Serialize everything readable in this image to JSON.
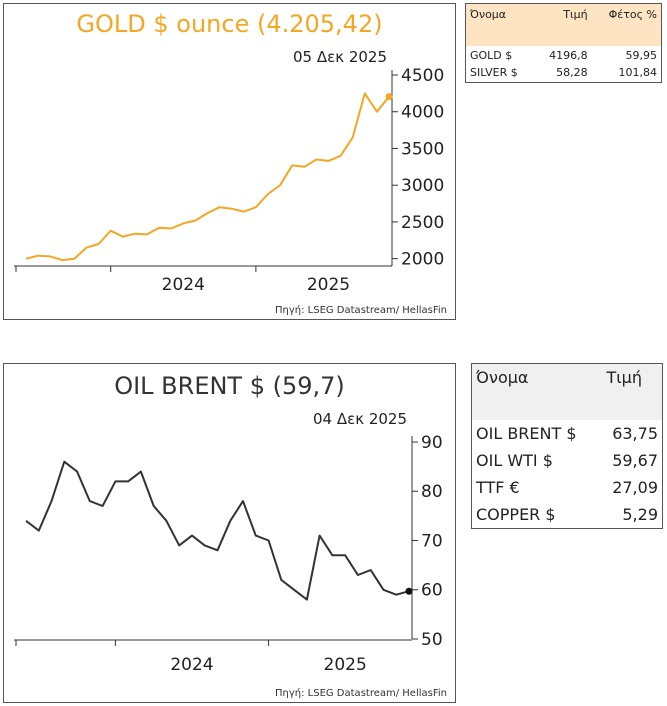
{
  "gold_panel": {
    "title": "GOLD $ ounce (4.205,42)",
    "date": "05 Δεκ 2025",
    "source": "Πηγή: LSEG Datastream/ HellasFin",
    "accent": "#f5a623"
  },
  "oil_panel": {
    "title": "OIL BRENT $ (59,7)",
    "date": "04 Δεκ 2025",
    "source": "Πηγή: LSEG Datastream/ HellasFin",
    "line_color": "#333333"
  },
  "metals_table": {
    "headers": [
      "Όνομα",
      "Τιμή",
      "Φέτος %"
    ],
    "header_bg": "#fde4c3",
    "rows": [
      {
        "name": "GOLD $",
        "price": "4196,8",
        "ytd": "59,95"
      },
      {
        "name": "SILVER $",
        "price": "58,28",
        "ytd": "101,84"
      }
    ]
  },
  "energy_table": {
    "headers": [
      "Όνομα",
      "Τιμή"
    ],
    "header_bg": "#f0f0f0",
    "rows": [
      {
        "name": "OIL BRENT $",
        "price": "63,75"
      },
      {
        "name": "OIL WTI $",
        "price": "59,67"
      },
      {
        "name": "TTF €",
        "price": "27,09"
      },
      {
        "name": "COPPER $",
        "price": "5,29"
      }
    ]
  },
  "chart_data": [
    {
      "type": "line",
      "title": "GOLD $ ounce (4.205,42)",
      "xlabel": "",
      "ylabel": "",
      "x_ticks": [
        "2024",
        "2025"
      ],
      "xlim": [
        "2023-06",
        "2025-12"
      ],
      "ylim": [
        1900,
        4500
      ],
      "y_ticks": [
        2000,
        2500,
        3000,
        3500,
        4000,
        4500
      ],
      "grid": false,
      "series": [
        {
          "x": [
            "2023-06",
            "2023-07",
            "2023-08",
            "2023-09",
            "2023-10",
            "2023-11",
            "2023-12",
            "2024-01",
            "2024-02",
            "2024-03",
            "2024-04",
            "2024-05",
            "2024-06",
            "2024-07",
            "2024-08",
            "2024-09",
            "2024-10",
            "2024-11",
            "2024-12",
            "2025-01",
            "2025-02",
            "2025-03",
            "2025-04",
            "2025-05",
            "2025-06",
            "2025-07",
            "2025-08",
            "2025-09",
            "2025-10",
            "2025-11",
            "2025-12"
          ],
          "values": [
            2000,
            2040,
            2030,
            1980,
            2000,
            2150,
            2200,
            2380,
            2300,
            2340,
            2330,
            2420,
            2410,
            2480,
            2520,
            2620,
            2700,
            2680,
            2640,
            2700,
            2880,
            3000,
            3270,
            3250,
            3350,
            3330,
            3400,
            3650,
            4250,
            4000,
            4205
          ]
        }
      ]
    },
    {
      "type": "line",
      "title": "OIL BRENT $ (59,7)",
      "xlabel": "",
      "ylabel": "",
      "x_ticks": [
        "2024",
        "2025"
      ],
      "xlim": [
        "2023-06",
        "2025-12"
      ],
      "ylim": [
        50,
        90
      ],
      "y_ticks": [
        50,
        60,
        70,
        80,
        90
      ],
      "grid": false,
      "series": [
        {
          "x": [
            "2023-06",
            "2023-07",
            "2023-08",
            "2023-09",
            "2023-10",
            "2023-11",
            "2023-12",
            "2024-01",
            "2024-02",
            "2024-03",
            "2024-04",
            "2024-05",
            "2024-06",
            "2024-07",
            "2024-08",
            "2024-09",
            "2024-10",
            "2024-11",
            "2024-12",
            "2025-01",
            "2025-02",
            "2025-03",
            "2025-04",
            "2025-05",
            "2025-06",
            "2025-07",
            "2025-08",
            "2025-09",
            "2025-10",
            "2025-11",
            "2025-12"
          ],
          "values": [
            74,
            72,
            78,
            86,
            84,
            78,
            77,
            82,
            82,
            84,
            77,
            74,
            69,
            71,
            69,
            68,
            74,
            78,
            71,
            70,
            62,
            60,
            58,
            71,
            67,
            67,
            63,
            64,
            60,
            59,
            59.7
          ]
        }
      ]
    }
  ]
}
